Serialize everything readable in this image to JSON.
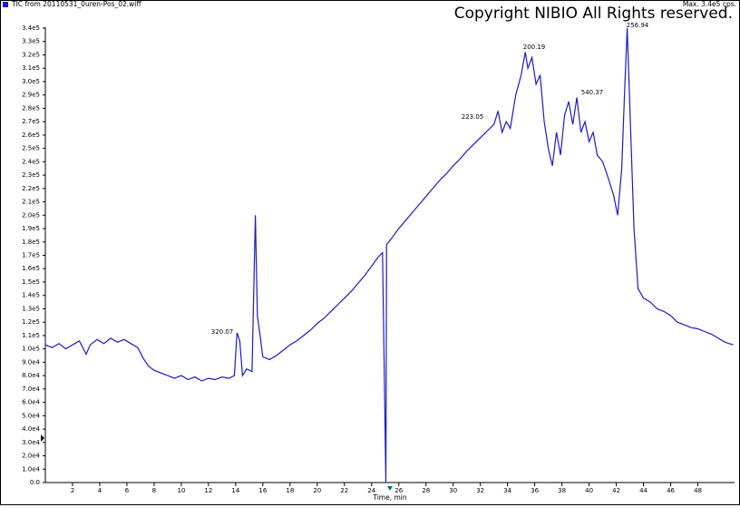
{
  "chart_data": {
    "type": "line",
    "title": "TIC from 20110531_0uren-Pos_02.wiff",
    "subtitle": "Max. 3.4e5 cps.",
    "copyright": "Copyright NIBIO All Rights reserved.",
    "x_label": "Time, min",
    "color": "#1a1acc",
    "annotations": [
      "320.07",
      "223.05",
      "200.19",
      "540.37",
      "256.94"
    ],
    "xlim": [
      0,
      50.7
    ],
    "ylim": [
      0,
      340000
    ],
    "xticks": [
      2,
      4,
      6,
      8,
      10,
      12,
      14,
      16,
      18,
      20,
      22,
      24,
      26,
      28,
      30,
      32,
      34,
      36,
      38,
      40,
      42,
      44,
      46,
      48
    ],
    "yticks": [
      {
        "value": 0,
        "label": "0.0"
      },
      {
        "value": 10000,
        "label": "1.0e4"
      },
      {
        "value": 20000,
        "label": "2.0e4"
      },
      {
        "value": 30000,
        "label": "3.0e4"
      },
      {
        "value": 40000,
        "label": "4.0e4"
      },
      {
        "value": 50000,
        "label": "5.0e4"
      },
      {
        "value": 60000,
        "label": "6.0e4"
      },
      {
        "value": 70000,
        "label": "7.0e4"
      },
      {
        "value": 80000,
        "label": "8.0e4"
      },
      {
        "value": 90000,
        "label": "9.0e4"
      },
      {
        "value": 100000,
        "label": "1.0e5"
      },
      {
        "value": 110000,
        "label": "1.1e5"
      },
      {
        "value": 120000,
        "label": "1.2e5"
      },
      {
        "value": 130000,
        "label": "1.3e5"
      },
      {
        "value": 140000,
        "label": "1.4e5"
      },
      {
        "value": 150000,
        "label": "1.5e5"
      },
      {
        "value": 160000,
        "label": "1.6e5"
      },
      {
        "value": 170000,
        "label": "1.7e5"
      },
      {
        "value": 180000,
        "label": "1.8e5"
      },
      {
        "value": 190000,
        "label": "1.9e5"
      },
      {
        "value": 200000,
        "label": "2.0e5"
      },
      {
        "value": 210000,
        "label": "2.1e5"
      },
      {
        "value": 220000,
        "label": "2.2e5"
      },
      {
        "value": 230000,
        "label": "2.3e5"
      },
      {
        "value": 240000,
        "label": "2.4e5"
      },
      {
        "value": 250000,
        "label": "2.5e5"
      },
      {
        "value": 260000,
        "label": "2.6e5"
      },
      {
        "value": 270000,
        "label": "2.7e5"
      },
      {
        "value": 280000,
        "label": "2.8e5"
      },
      {
        "value": 290000,
        "label": "2.9e5"
      },
      {
        "value": 300000,
        "label": "3.0e5"
      },
      {
        "value": 310000,
        "label": "3.1e5"
      },
      {
        "value": 320000,
        "label": "3.2e5"
      },
      {
        "value": 330000,
        "label": "3.3e5"
      },
      {
        "value": 340000,
        "label": "3.4e5"
      }
    ],
    "x": [
      0.0,
      0.5,
      1.0,
      1.5,
      2.0,
      2.5,
      3.0,
      3.3,
      3.8,
      4.3,
      4.8,
      5.3,
      5.8,
      6.3,
      6.8,
      7.2,
      7.6,
      8.0,
      8.5,
      9.0,
      9.5,
      10.0,
      10.5,
      11.0,
      11.5,
      12.0,
      12.5,
      13.0,
      13.5,
      13.9,
      14.1,
      14.3,
      14.5,
      14.8,
      15.2,
      15.45,
      15.6,
      15.8,
      16.0,
      16.5,
      17.0,
      17.5,
      18.0,
      18.5,
      19.0,
      19.5,
      20.0,
      20.5,
      21.0,
      21.5,
      22.0,
      22.5,
      23.0,
      23.5,
      24.0,
      24.5,
      24.8,
      25.05,
      25.1,
      25.5,
      26.0,
      26.5,
      27.0,
      27.5,
      28.0,
      28.5,
      29.0,
      29.5,
      30.0,
      30.5,
      31.0,
      31.5,
      32.0,
      32.5,
      33.0,
      33.3,
      33.6,
      33.9,
      34.2,
      34.6,
      35.0,
      35.3,
      35.5,
      35.8,
      36.1,
      36.4,
      36.7,
      37.0,
      37.3,
      37.6,
      37.9,
      38.2,
      38.5,
      38.8,
      39.1,
      39.4,
      39.7,
      40.0,
      40.3,
      40.6,
      41.0,
      41.4,
      41.8,
      42.1,
      42.4,
      42.6,
      42.8,
      43.0,
      43.3,
      43.6,
      44.0,
      44.5,
      45.0,
      45.5,
      46.0,
      46.5,
      47.0,
      47.5,
      48.0,
      48.5,
      49.0,
      49.5,
      50.0,
      50.6
    ],
    "values": [
      103000,
      101000,
      104000,
      100000,
      103000,
      106000,
      96000,
      103000,
      107000,
      104000,
      108000,
      105000,
      107000,
      104000,
      101000,
      93000,
      87000,
      84000,
      82000,
      80000,
      78000,
      80000,
      77000,
      79000,
      76000,
      78000,
      77000,
      79000,
      78000,
      80000,
      112000,
      106000,
      80000,
      85000,
      83000,
      200000,
      125000,
      110000,
      94000,
      92000,
      95000,
      99000,
      103000,
      106000,
      110000,
      114000,
      119000,
      123000,
      128000,
      133000,
      138000,
      143000,
      149000,
      155000,
      162000,
      169000,
      172000,
      0,
      178000,
      183000,
      190000,
      196000,
      202000,
      208000,
      214000,
      220000,
      226000,
      231000,
      237000,
      242000,
      248000,
      253000,
      258000,
      263000,
      268000,
      278000,
      262000,
      270000,
      265000,
      290000,
      305000,
      322000,
      310000,
      318000,
      298000,
      305000,
      270000,
      250000,
      237000,
      262000,
      245000,
      275000,
      285000,
      268000,
      288000,
      262000,
      270000,
      255000,
      262000,
      245000,
      240000,
      228000,
      215000,
      200000,
      235000,
      290000,
      340000,
      280000,
      190000,
      145000,
      138000,
      135000,
      130000,
      128000,
      125000,
      120000,
      118000,
      116000,
      115000,
      113000,
      111000,
      108000,
      105000,
      103000
    ]
  }
}
